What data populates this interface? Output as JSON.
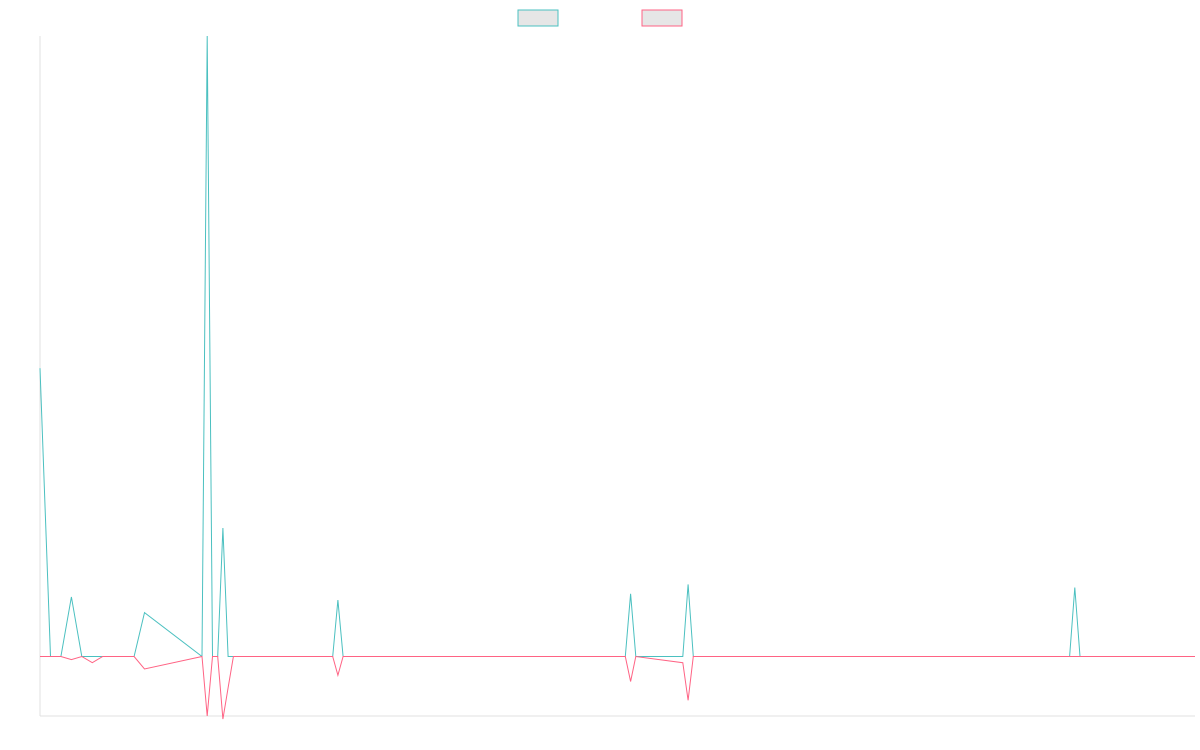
{
  "chart_data": {
    "type": "line",
    "title": "",
    "xlabel": "",
    "ylabel": "",
    "legend": {
      "placement": "top-center",
      "show_labels": false
    },
    "grid": false,
    "ylim": [
      -19,
      198
    ],
    "series": [
      {
        "name": "",
        "color": "#4bc0c0",
        "x": [
          0,
          2,
          4,
          6,
          8,
          10,
          12,
          14,
          16,
          18,
          20,
          31,
          32,
          33,
          34,
          35,
          36,
          37,
          44,
          45,
          46,
          56,
          57,
          58,
          89,
          90,
          91,
          112,
          113,
          114,
          123,
          124,
          125,
          197,
          198,
          199,
          215,
          216,
          217,
          220,
          221
        ],
        "y": [
          92,
          0,
          0,
          19,
          0,
          0,
          0,
          0,
          0,
          0,
          14,
          0,
          198,
          0,
          0,
          41,
          0,
          0,
          0,
          0,
          0,
          0,
          18,
          0,
          0,
          0,
          0,
          0,
          20,
          0,
          0,
          23,
          0,
          0,
          22,
          0,
          0,
          0,
          0,
          0,
          0
        ]
      },
      {
        "name": "",
        "color": "#ff6384",
        "x": [
          0,
          2,
          4,
          6,
          8,
          10,
          12,
          14,
          16,
          18,
          20,
          31,
          32,
          33,
          34,
          35,
          36,
          37,
          44,
          45,
          46,
          56,
          57,
          58,
          89,
          90,
          91,
          112,
          113,
          114,
          123,
          124,
          125,
          197,
          198,
          199,
          215,
          216,
          217,
          220,
          221
        ],
        "y": [
          0,
          0,
          0,
          -1,
          0,
          -2,
          0,
          0,
          0,
          0,
          -4,
          0,
          -19,
          0,
          0,
          -20,
          -10,
          0,
          0,
          0,
          0,
          0,
          -6,
          0,
          0,
          0,
          0,
          0,
          -8,
          0,
          -2,
          -14,
          0,
          0,
          0,
          0,
          0,
          0,
          0,
          0,
          0
        ]
      }
    ],
    "x_axis_visible": true,
    "y_axis_visible": true
  }
}
